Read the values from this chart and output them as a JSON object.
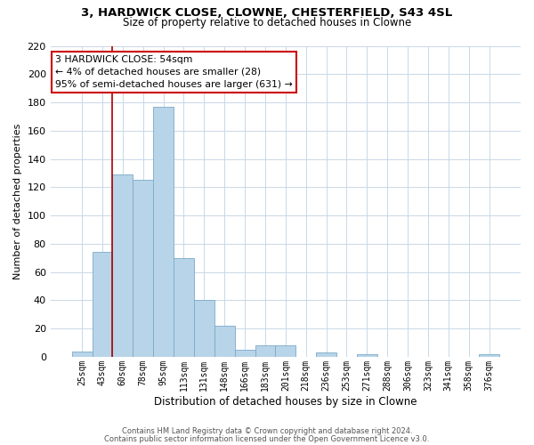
{
  "title_line1": "3, HARDWICK CLOSE, CLOWNE, CHESTERFIELD, S43 4SL",
  "title_line2": "Size of property relative to detached houses in Clowne",
  "xlabel": "Distribution of detached houses by size in Clowne",
  "ylabel": "Number of detached properties",
  "bar_labels": [
    "25sqm",
    "43sqm",
    "60sqm",
    "78sqm",
    "95sqm",
    "113sqm",
    "131sqm",
    "148sqm",
    "166sqm",
    "183sqm",
    "201sqm",
    "218sqm",
    "236sqm",
    "253sqm",
    "271sqm",
    "288sqm",
    "306sqm",
    "323sqm",
    "341sqm",
    "358sqm",
    "376sqm"
  ],
  "bar_values": [
    4,
    74,
    129,
    125,
    177,
    70,
    40,
    22,
    5,
    8,
    8,
    0,
    3,
    0,
    2,
    0,
    0,
    0,
    0,
    0,
    2
  ],
  "bar_color": "#b8d4e8",
  "bar_edge_color": "#7aaac8",
  "vline_color": "#aa0000",
  "ylim": [
    0,
    220
  ],
  "yticks": [
    0,
    20,
    40,
    60,
    80,
    100,
    120,
    140,
    160,
    180,
    200,
    220
  ],
  "annotation_text": "3 HARDWICK CLOSE: 54sqm\n← 4% of detached houses are smaller (28)\n95% of semi-detached houses are larger (631) →",
  "annotation_box_color": "#ffffff",
  "annotation_box_edge": "#cc0000",
  "footer_line1": "Contains HM Land Registry data © Crown copyright and database right 2024.",
  "footer_line2": "Contains public sector information licensed under the Open Government Licence v3.0.",
  "background_color": "#ffffff",
  "grid_color": "#c8d8e8"
}
